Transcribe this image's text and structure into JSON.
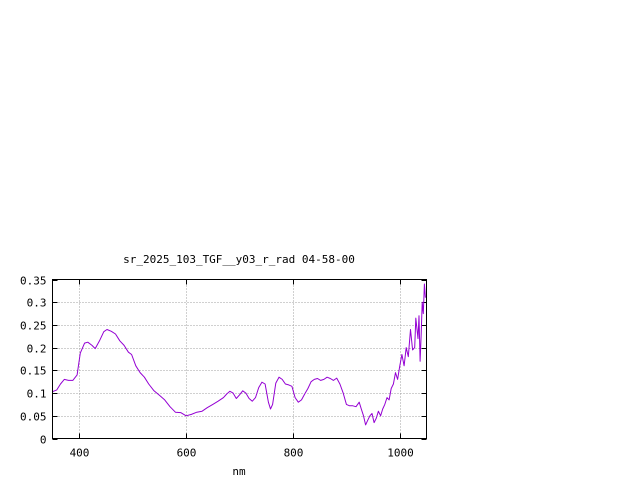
{
  "chart_data": {
    "type": "line",
    "title": "sr_2025_103_TGF__y03_r_rad 04-58-00",
    "xlabel": "nm",
    "ylabel": "",
    "xlim": [
      350,
      1050
    ],
    "ylim": [
      0,
      0.35
    ],
    "grid": true,
    "x_ticks": [
      {
        "value": 400,
        "label": "400"
      },
      {
        "value": 600,
        "label": "600"
      },
      {
        "value": 800,
        "label": "800"
      },
      {
        "value": 1000,
        "label": "1000"
      }
    ],
    "y_ticks": [
      {
        "value": 0,
        "label": "0"
      },
      {
        "value": 0.05,
        "label": "0.05"
      },
      {
        "value": 0.1,
        "label": "0.1"
      },
      {
        "value": 0.15,
        "label": "0.15"
      },
      {
        "value": 0.2,
        "label": "0.2"
      },
      {
        "value": 0.25,
        "label": "0.25"
      },
      {
        "value": 0.3,
        "label": "0.3"
      },
      {
        "value": 0.35,
        "label": "0.35"
      }
    ],
    "series": [
      {
        "color": "#9400d3",
        "x": [
          350,
          358,
          365,
          372,
          380,
          388,
          396,
          402,
          410,
          416,
          424,
          430,
          438,
          446,
          452,
          460,
          468,
          476,
          484,
          492,
          498,
          506,
          514,
          522,
          530,
          540,
          550,
          560,
          570,
          580,
          590,
          600,
          610,
          620,
          630,
          640,
          650,
          660,
          670,
          676,
          682,
          688,
          694,
          700,
          706,
          712,
          718,
          724,
          730,
          736,
          742,
          748,
          754,
          758,
          762,
          768,
          774,
          780,
          786,
          792,
          798,
          804,
          810,
          816,
          822,
          828,
          834,
          840,
          846,
          852,
          858,
          864,
          870,
          876,
          882,
          888,
          894,
          900,
          906,
          912,
          918,
          924,
          928,
          932,
          936,
          940,
          944,
          948,
          952,
          956,
          960,
          964,
          968,
          972,
          976,
          980,
          984,
          988,
          992,
          996,
          1000,
          1004,
          1008,
          1012,
          1016,
          1020,
          1024,
          1028,
          1030,
          1034,
          1036,
          1038,
          1040,
          1042,
          1044,
          1046,
          1048
        ],
        "y": [
          0.103,
          0.107,
          0.12,
          0.13,
          0.128,
          0.128,
          0.14,
          0.188,
          0.21,
          0.212,
          0.205,
          0.198,
          0.215,
          0.235,
          0.24,
          0.236,
          0.23,
          0.215,
          0.205,
          0.19,
          0.185,
          0.16,
          0.145,
          0.135,
          0.12,
          0.105,
          0.095,
          0.085,
          0.07,
          0.058,
          0.057,
          0.05,
          0.053,
          0.058,
          0.06,
          0.068,
          0.075,
          0.082,
          0.09,
          0.098,
          0.104,
          0.1,
          0.088,
          0.096,
          0.105,
          0.1,
          0.088,
          0.082,
          0.09,
          0.112,
          0.124,
          0.12,
          0.08,
          0.065,
          0.075,
          0.122,
          0.135,
          0.13,
          0.12,
          0.118,
          0.115,
          0.09,
          0.08,
          0.085,
          0.098,
          0.11,
          0.125,
          0.13,
          0.132,
          0.128,
          0.13,
          0.135,
          0.132,
          0.128,
          0.133,
          0.12,
          0.1,
          0.075,
          0.072,
          0.072,
          0.07,
          0.08,
          0.065,
          0.05,
          0.03,
          0.04,
          0.05,
          0.055,
          0.035,
          0.045,
          0.06,
          0.05,
          0.065,
          0.075,
          0.09,
          0.085,
          0.11,
          0.12,
          0.145,
          0.13,
          0.16,
          0.185,
          0.16,
          0.2,
          0.18,
          0.24,
          0.195,
          0.2,
          0.265,
          0.22,
          0.27,
          0.17,
          0.23,
          0.3,
          0.275,
          0.34,
          0.31
        ]
      }
    ]
  }
}
